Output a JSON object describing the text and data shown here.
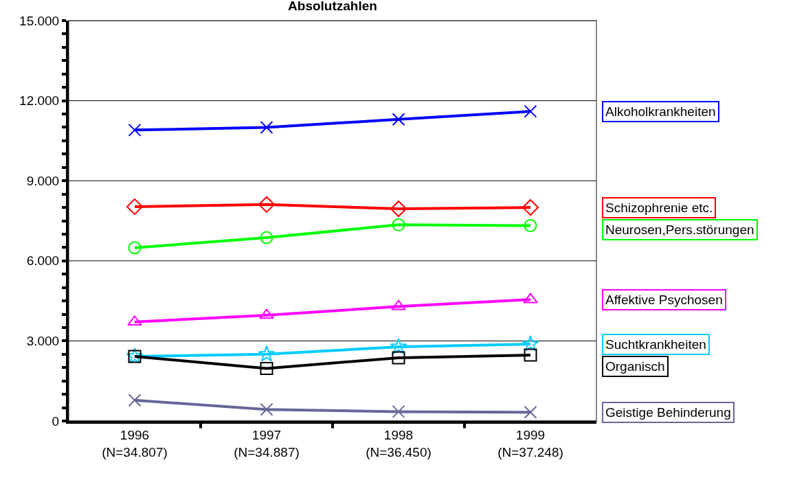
{
  "chart_data": {
    "type": "line",
    "title": "Absolutzahlen",
    "categories": [
      "1996\n(N=34.807)",
      "1997\n(N=34.887)",
      "1998\n(N=36.450)",
      "1999\n(N=37.248)"
    ],
    "series": [
      {
        "name": "Alkoholkrankheiten",
        "color": "#0000ff",
        "marker": "cross",
        "values": [
          10900,
          11000,
          11300,
          11600
        ]
      },
      {
        "name": "Schizophrenie etc.",
        "color": "#ff0000",
        "marker": "diamond",
        "values": [
          8030,
          8110,
          7950,
          8000
        ]
      },
      {
        "name": "Neurosen,Pers.störungen",
        "color": "#00ff00",
        "marker": "circle",
        "values": [
          6490,
          6870,
          7350,
          7320
        ]
      },
      {
        "name": "Affektive Psychosen",
        "color": "#ff00ff",
        "marker": "triangle",
        "values": [
          3710,
          3960,
          4290,
          4550
        ]
      },
      {
        "name": "Suchtkrankheiten",
        "color": "#00ccff",
        "marker": "star",
        "values": [
          2420,
          2500,
          2780,
          2880
        ]
      },
      {
        "name": "Organisch",
        "color": "#000000",
        "marker": "square",
        "values": [
          2420,
          1970,
          2370,
          2470
        ]
      },
      {
        "name": "Geistige Behinderung",
        "color": "#666699",
        "marker": "cross",
        "values": [
          780,
          430,
          350,
          330
        ]
      }
    ],
    "ylim": [
      0,
      15000
    ],
    "yticks": [
      {
        "value": 0,
        "label": "0"
      },
      {
        "value": 500,
        "label": null
      },
      {
        "value": 1000,
        "label": null
      },
      {
        "value": 1500,
        "label": null
      },
      {
        "value": 2000,
        "label": null
      },
      {
        "value": 2500,
        "label": null
      },
      {
        "value": 3000,
        "label": "3.000"
      },
      {
        "value": 3500,
        "label": null
      },
      {
        "value": 4000,
        "label": null
      },
      {
        "value": 4500,
        "label": null
      },
      {
        "value": 5000,
        "label": null
      },
      {
        "value": 5500,
        "label": null
      },
      {
        "value": 6000,
        "label": "6.000"
      },
      {
        "value": 6500,
        "label": null
      },
      {
        "value": 7000,
        "label": null
      },
      {
        "value": 7500,
        "label": null
      },
      {
        "value": 8000,
        "label": null
      },
      {
        "value": 8500,
        "label": null
      },
      {
        "value": 9000,
        "label": "9.000"
      },
      {
        "value": 9500,
        "label": null
      },
      {
        "value": 10000,
        "label": null
      },
      {
        "value": 10500,
        "label": null
      },
      {
        "value": 11000,
        "label": null
      },
      {
        "value": 11500,
        "label": null
      },
      {
        "value": 12000,
        "label": "12.000"
      },
      {
        "value": 12500,
        "label": null
      },
      {
        "value": 13000,
        "label": null
      },
      {
        "value": 13500,
        "label": null
      },
      {
        "value": 14000,
        "label": null
      },
      {
        "value": 14500,
        "label": null
      },
      {
        "value": 15000,
        "label": "15.000"
      }
    ],
    "grid": "y",
    "legend": false,
    "line_style": "solid"
  }
}
